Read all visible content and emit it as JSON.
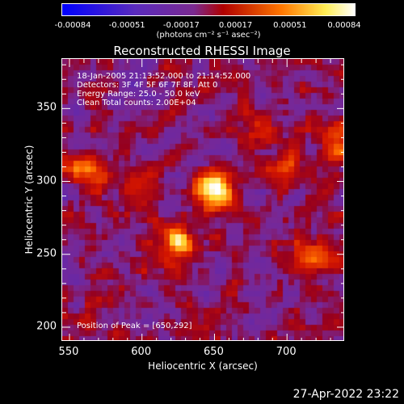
{
  "chart_data": {
    "type": "heatmap",
    "title": "Reconstructed RHESSI Image",
    "xlabel": "Heliocentric X (arcsec)",
    "ylabel": "Heliocentric Y (arcsec)",
    "xlim": [
      545,
      740
    ],
    "ylim": [
      190,
      384
    ],
    "xticks": [
      "550",
      "600",
      "650",
      "700"
    ],
    "yticks": [
      "200",
      "250",
      "300",
      "350"
    ],
    "colorbar": {
      "ticks": [
        "-0.00084",
        "-0.00051",
        "-0.00017",
        "0.00017",
        "0.00051",
        "0.00084"
      ],
      "range": [
        -0.00084,
        0.00084
      ],
      "unit": "(photons cm⁻² s⁻¹ asec⁻²)",
      "colors": [
        "#0000ff",
        "#5a2bbd",
        "#7a2a90",
        "#cc0000",
        "#ff8800",
        "#ffffff"
      ]
    },
    "annotations": {
      "time_range": "18-Jan-2005 21:13:52.000 to 21:14:52.000",
      "detectors": "Detectors: 3F 4F 5F 6F 7F 8F, Att 0",
      "energy": "Energy Range: 25.0 - 50.0 keV",
      "clean": "Clean    Total counts: 2.00E+04",
      "peak": "Position of Peak = [650,292]"
    },
    "sources": [
      {
        "x": 650,
        "y": 292,
        "value": 0.00084
      },
      {
        "x": 626,
        "y": 258,
        "value": 0.00075
      },
      {
        "x": 560,
        "y": 305,
        "value": 0.00045
      },
      {
        "x": 718,
        "y": 248,
        "value": 0.0004
      },
      {
        "x": 700,
        "y": 307,
        "value": 0.00035
      },
      {
        "x": 735,
        "y": 325,
        "value": 0.0004
      },
      {
        "x": 680,
        "y": 330,
        "value": 0.0003
      },
      {
        "x": 600,
        "y": 300,
        "value": 0.00025
      }
    ]
  },
  "timestamp": "27-Apr-2022 23:22"
}
